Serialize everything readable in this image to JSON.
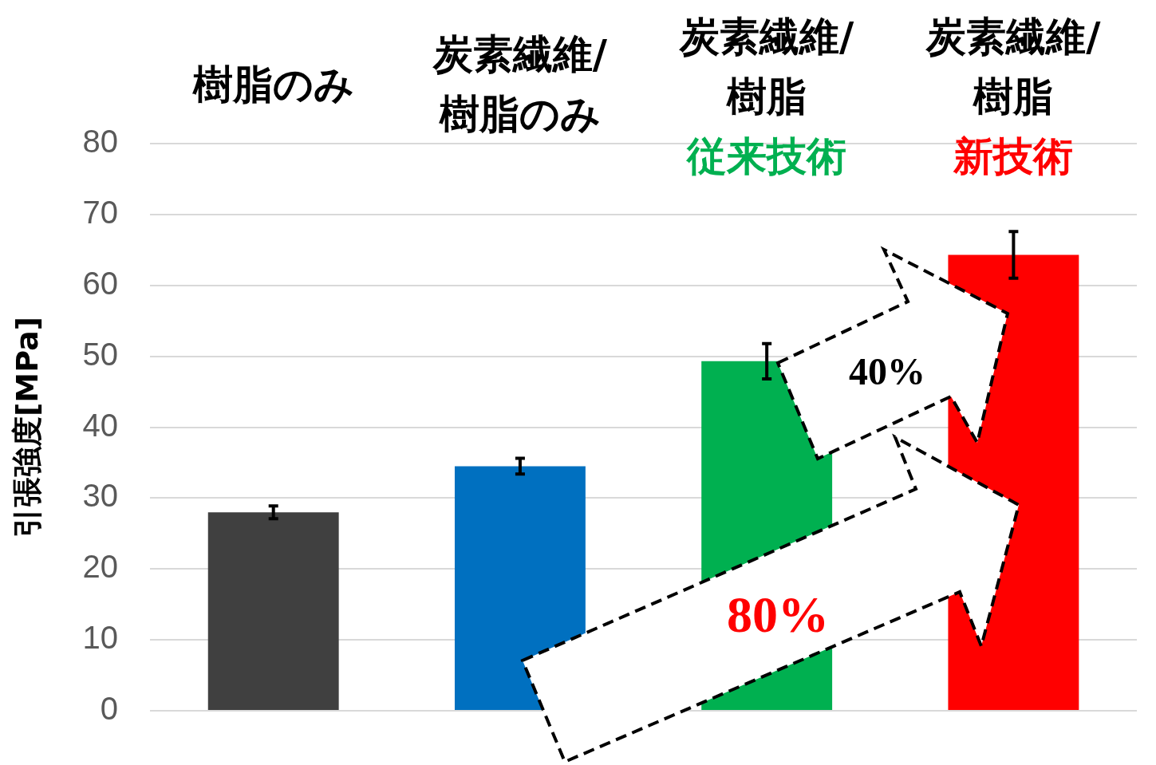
{
  "chart_data": {
    "type": "bar",
    "ylabel": "引張強度[MPa]",
    "categories": [
      "樹脂のみ",
      "炭素繊維/\n樹脂のみ",
      "炭素繊維/\n樹脂従来技術",
      "炭素繊維/\n樹脂新技術"
    ],
    "values": [
      28,
      34.5,
      49.3,
      64.3
    ],
    "errors": [
      0.9,
      1.1,
      2.5,
      3.3
    ],
    "colors": [
      "#404040",
      "#0070c0",
      "#00b050",
      "#ff0000"
    ],
    "ylim": [
      0,
      80
    ],
    "yticks": [
      0,
      10,
      20,
      30,
      40,
      50,
      60,
      70,
      80
    ],
    "grid": "y",
    "annotations": [
      "40%",
      "80%"
    ]
  }
}
